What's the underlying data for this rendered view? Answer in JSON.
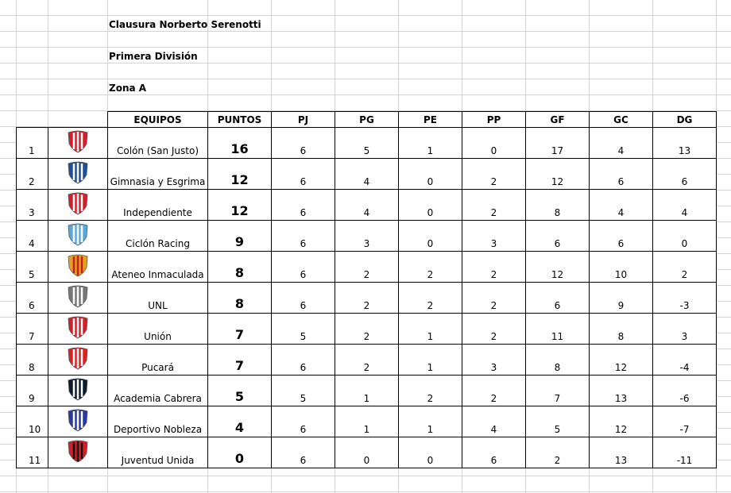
{
  "titles": [
    "Clausura Norberto Serenotti",
    "Primera División",
    "Zona A"
  ],
  "headers": [
    "EQUIPOS",
    "PUNTOS",
    "PJ",
    "PG",
    "PE",
    "PP",
    "GF",
    "GC",
    "DG"
  ],
  "rows": [
    {
      "pos": "1",
      "team": "Colón (San Justo)",
      "logo": "colon-shield-icon",
      "c1": "#d2202a",
      "c2": "#ffffff",
      "vals": [
        "16",
        "6",
        "5",
        "1",
        "0",
        "17",
        "4",
        "13"
      ]
    },
    {
      "pos": "2",
      "team": "Gimnasia y Esgrima",
      "logo": "gimnasia-shield-icon",
      "c1": "#1f4e9c",
      "c2": "#ffffff",
      "vals": [
        "12",
        "6",
        "4",
        "0",
        "2",
        "12",
        "6",
        "6"
      ]
    },
    {
      "pos": "3",
      "team": "Independiente",
      "logo": "independiente-shield-icon",
      "c1": "#d2202a",
      "c2": "#ffffff",
      "vals": [
        "12",
        "6",
        "4",
        "0",
        "2",
        "8",
        "4",
        "4"
      ]
    },
    {
      "pos": "4",
      "team": "Ciclón Racing",
      "logo": "racing-shield-icon",
      "c1": "#5aa9dc",
      "c2": "#ffffff",
      "vals": [
        "9",
        "6",
        "3",
        "0",
        "3",
        "6",
        "6",
        "0"
      ]
    },
    {
      "pos": "5",
      "team": "Ateneo Inmaculada",
      "logo": "ateneo-shield-icon",
      "c1": "#e8a020",
      "c2": "#c02020",
      "vals": [
        "8",
        "6",
        "2",
        "2",
        "2",
        "12",
        "10",
        "2"
      ]
    },
    {
      "pos": "6",
      "team": "UNL",
      "logo": "unl-seal-icon",
      "c1": "#777777",
      "c2": "#ffffff",
      "vals": [
        "8",
        "6",
        "2",
        "2",
        "2",
        "6",
        "9",
        "-3"
      ]
    },
    {
      "pos": "7",
      "team": "Unión",
      "logo": "union-shield-icon",
      "c1": "#d2202a",
      "c2": "#ffffff",
      "vals": [
        "7",
        "5",
        "2",
        "1",
        "2",
        "11",
        "8",
        "3"
      ]
    },
    {
      "pos": "8",
      "team": "Pucará",
      "logo": "pucara-logo-icon",
      "c1": "#e02020",
      "c2": "#ffffff",
      "vals": [
        "7",
        "6",
        "2",
        "1",
        "3",
        "8",
        "12",
        "-4"
      ]
    },
    {
      "pos": "9",
      "team": "Academia Cabrera",
      "logo": "academia-logo-icon",
      "c1": "#0d1a2e",
      "c2": "#ffffff",
      "vals": [
        "5",
        "5",
        "1",
        "2",
        "2",
        "7",
        "13",
        "-6"
      ]
    },
    {
      "pos": "10",
      "team": "Deportivo Nobleza",
      "logo": "nobleza-shield-icon",
      "c1": "#2a3a9c",
      "c2": "#ffffff",
      "vals": [
        "4",
        "6",
        "1",
        "1",
        "4",
        "5",
        "12",
        "-7"
      ]
    },
    {
      "pos": "11",
      "team": "Juventud Unida",
      "logo": "juventud-shield-icon",
      "c1": "#d2202a",
      "c2": "#111111",
      "vals": [
        "0",
        "6",
        "0",
        "0",
        "6",
        "2",
        "13",
        "-11"
      ]
    }
  ]
}
